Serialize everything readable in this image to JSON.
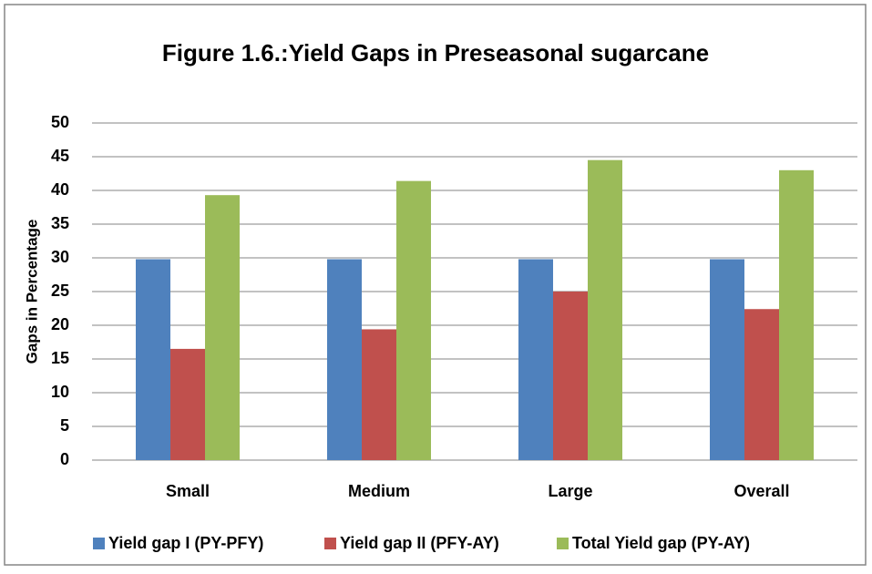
{
  "chart_data": {
    "type": "bar",
    "title": "Figure 1.6.:Yield Gaps in Preseasonal sugarcane",
    "y_label": "Gaps in Percentage",
    "categories": [
      "Small",
      "Medium",
      "Large",
      "Overall"
    ],
    "series": [
      {
        "name": "Yield gap I (PY-PFY)",
        "color": "#4f81bd",
        "values": [
          29.8,
          29.8,
          29.8,
          29.8
        ]
      },
      {
        "name": "Yield gap II (PFY-AY)",
        "color": "#c0504d",
        "values": [
          16.5,
          19.4,
          25.0,
          22.4
        ]
      },
      {
        "name": "Total Yield gap (PY-AY)",
        "color": "#9bbb59",
        "values": [
          39.3,
          41.4,
          44.5,
          43.0
        ]
      }
    ],
    "ylim": [
      0,
      50
    ],
    "yticks": [
      0,
      5,
      10,
      15,
      20,
      25,
      30,
      35,
      40,
      45,
      50
    ],
    "grid": true,
    "legend": "bottom"
  }
}
